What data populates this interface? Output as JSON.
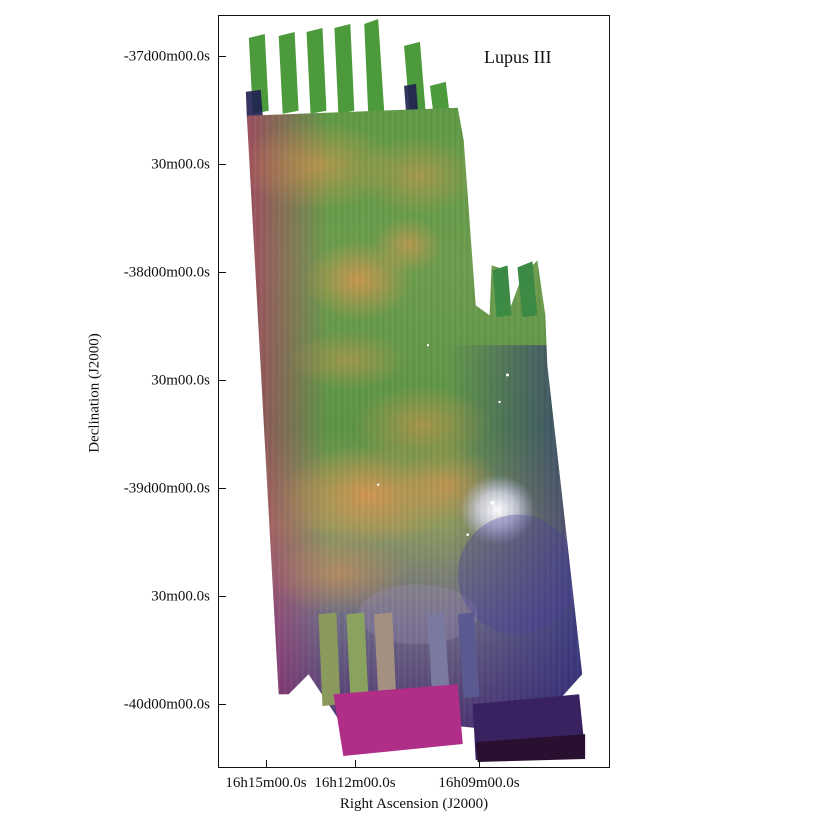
{
  "figure": {
    "label": "Lupus III",
    "xaxis_title": "Right Ascension (J2000)",
    "yaxis_title": "Declination (J2000)",
    "y_ticks": [
      "-37d00m00.0s",
      "30m00.0s",
      "-38d00m00.0s",
      "30m00.0s",
      "-39d00m00.0s",
      "30m00.0s",
      "-40d00m00.0s"
    ],
    "x_ticks": [
      "16h15m00.0s",
      "16h12m00.0s",
      "16h09m00.0s"
    ]
  },
  "colors": {
    "green_band": "#4f9a3f",
    "orange_emission": "#e8904a",
    "magenta_edge": "#b0306a",
    "blue_edge": "#2a2a7a",
    "frame": "#111111"
  }
}
